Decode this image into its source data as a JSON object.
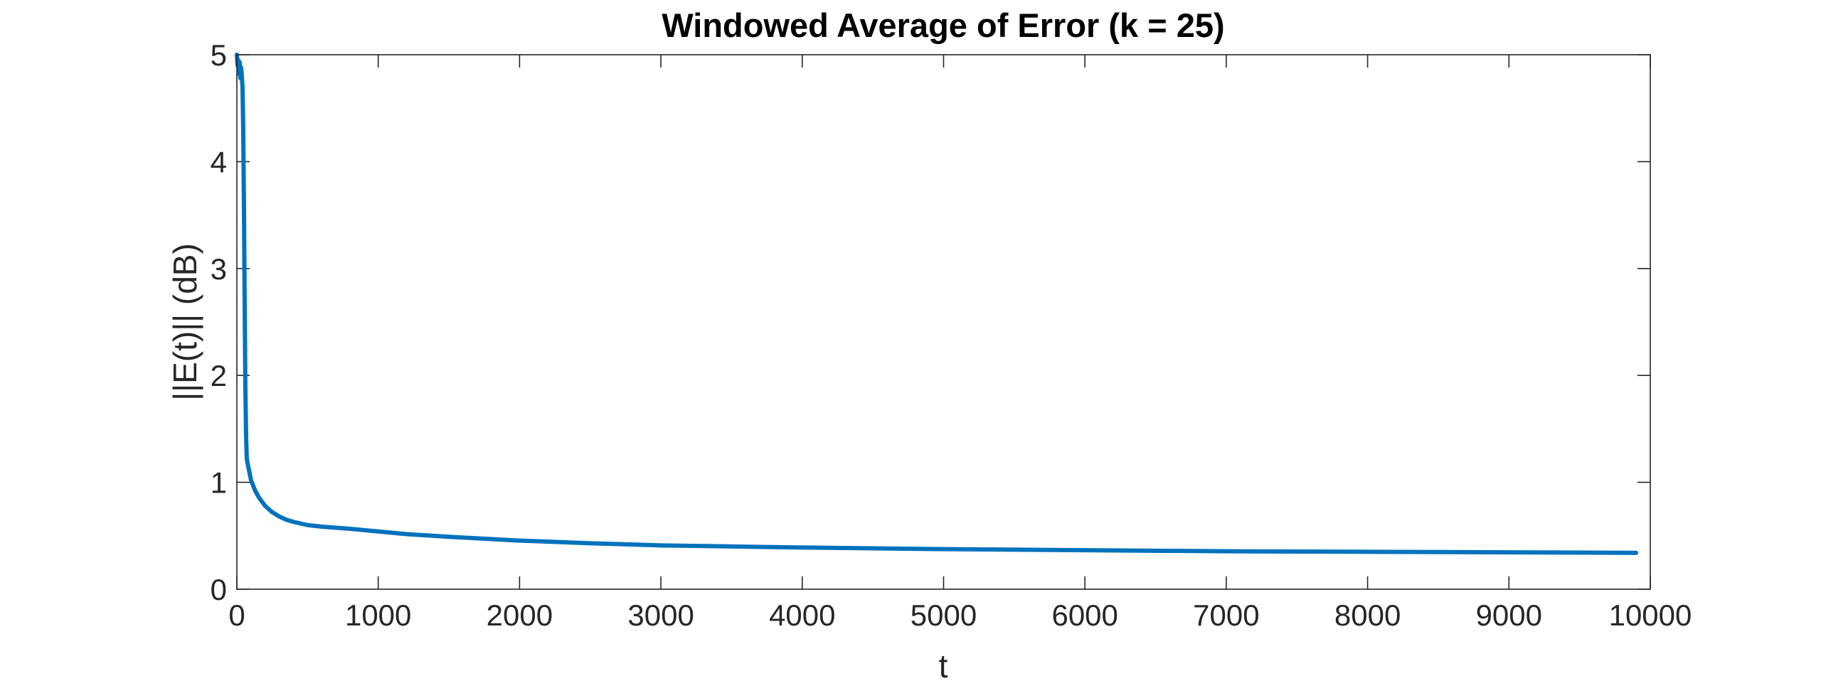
{
  "chart_data": {
    "type": "line",
    "title": "Windowed Average of Error (k = 25)",
    "xlabel": "t",
    "ylabel": "||E(t)|| (dB)",
    "xlim": [
      0,
      10000
    ],
    "ylim": [
      0,
      5
    ],
    "x_ticks": [
      0,
      1000,
      2000,
      3000,
      4000,
      5000,
      6000,
      7000,
      8000,
      9000,
      10000
    ],
    "y_ticks": [
      0,
      1,
      2,
      3,
      4,
      5
    ],
    "x_tick_labels": [
      "0",
      "1000",
      "2000",
      "3000",
      "4000",
      "5000",
      "6000",
      "7000",
      "8000",
      "9000",
      "10000"
    ],
    "y_tick_labels": [
      "0",
      "1",
      "2",
      "3",
      "4",
      "5"
    ],
    "grid": false,
    "box": true,
    "line_color": "#0072BD",
    "series": [
      {
        "x": [
          0,
          5,
          10,
          15,
          20,
          25,
          30,
          35,
          40,
          45,
          50,
          55,
          60,
          65,
          70,
          80,
          100,
          130,
          160,
          200,
          250,
          300,
          350,
          400,
          450,
          500,
          600,
          800,
          1000,
          1200,
          1500,
          2000,
          2500,
          3000,
          3500,
          4000,
          5000,
          6000,
          7000,
          8000,
          9000,
          9900
        ],
        "y": [
          5.0,
          4.9,
          4.95,
          4.82,
          4.93,
          4.78,
          4.88,
          4.8,
          4.7,
          4.3,
          3.6,
          2.7,
          1.9,
          1.45,
          1.22,
          1.15,
          1.02,
          0.92,
          0.85,
          0.78,
          0.72,
          0.68,
          0.65,
          0.63,
          0.615,
          0.6,
          0.585,
          0.565,
          0.54,
          0.515,
          0.49,
          0.455,
          0.43,
          0.41,
          0.4,
          0.39,
          0.375,
          0.365,
          0.355,
          0.35,
          0.345,
          0.34
        ]
      }
    ]
  }
}
